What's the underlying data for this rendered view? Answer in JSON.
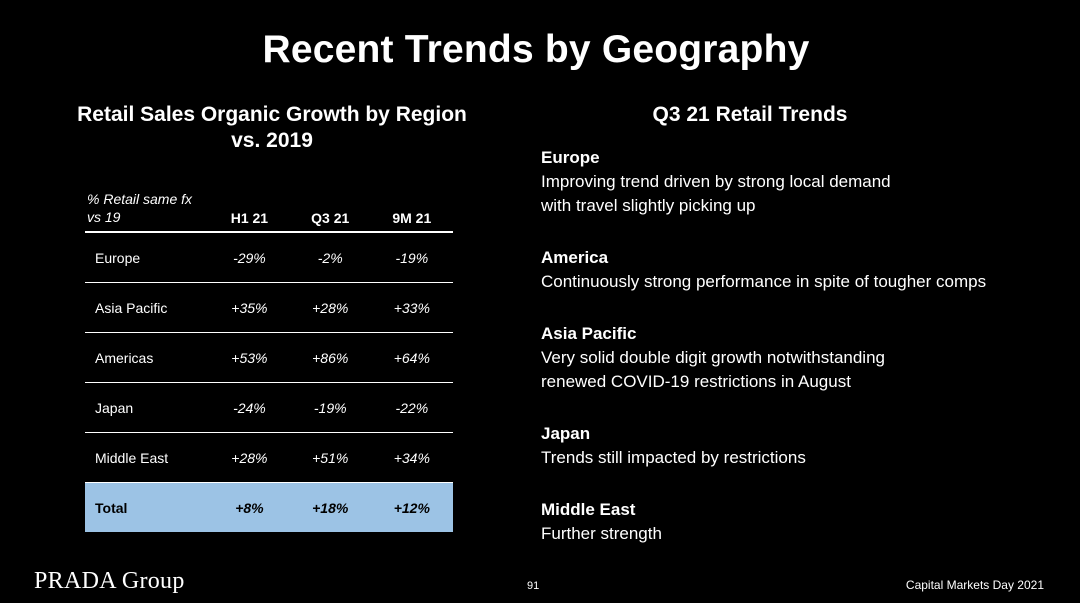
{
  "title": "Recent Trends by Geography",
  "left": {
    "title": "Retail Sales Organic Growth by Region vs. 2019",
    "table": {
      "header_label": "% Retail same fx vs 19",
      "columns": [
        "H1 21",
        "Q3 21",
        "9M 21"
      ],
      "rows": [
        {
          "region": "Europe",
          "values": [
            "-29%",
            "-2%",
            "-19%"
          ]
        },
        {
          "region": "Asia Pacific",
          "values": [
            "+35%",
            "+28%",
            "+33%"
          ]
        },
        {
          "region": "Americas",
          "values": [
            "+53%",
            "+86%",
            "+64%"
          ]
        },
        {
          "region": "Japan",
          "values": [
            "-24%",
            "-19%",
            "-22%"
          ]
        },
        {
          "region": "Middle East",
          "values": [
            "+28%",
            "+51%",
            "+34%"
          ]
        }
      ],
      "total": {
        "region": "Total",
        "values": [
          "+8%",
          "+18%",
          "+12%"
        ]
      },
      "total_color": "#9cc3e5"
    }
  },
  "right": {
    "title": "Q3 21 Retail Trends",
    "trends": [
      {
        "name": "Europe",
        "lines": [
          "Improving trend driven by strong local demand",
          "with travel slightly picking up"
        ]
      },
      {
        "name": "America",
        "lines": [
          "Continuously strong performance in spite of tougher comps"
        ]
      },
      {
        "name": "Asia Pacific",
        "lines": [
          "Very solid double digit growth notwithstanding",
          "renewed COVID-19 restrictions in August"
        ]
      },
      {
        "name": "Japan",
        "lines": [
          "Trends still impacted by restrictions"
        ]
      },
      {
        "name": "Middle East",
        "lines": [
          "Further strength"
        ]
      }
    ]
  },
  "footer": {
    "logo": "PRADA Group",
    "page": "91",
    "event": "Capital Markets Day 2021"
  }
}
